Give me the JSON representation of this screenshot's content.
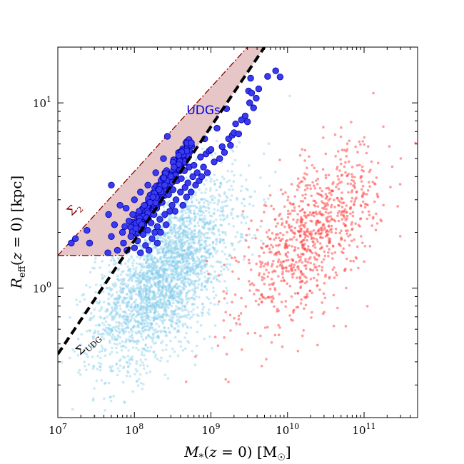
{
  "chart_data": {
    "type": "scatter",
    "title": "",
    "xlabel": "M_*(z=0) [M_☉]",
    "ylabel": "R_eff(z=0) [kpc]",
    "xscale": "log",
    "yscale": "log",
    "xlim": [
      10000000.0,
      500000000000.0
    ],
    "ylim": [
      0.2,
      20
    ],
    "x_ticks": [
      {
        "value": 10000000.0,
        "base": "10",
        "exp": "7"
      },
      {
        "value": 100000000.0,
        "base": "10",
        "exp": "8"
      },
      {
        "value": 1000000000.0,
        "base": "10",
        "exp": "9"
      },
      {
        "value": 10000000000.0,
        "base": "10",
        "exp": "10"
      },
      {
        "value": 100000000000.0,
        "base": "10",
        "exp": "11"
      }
    ],
    "y_ticks": [
      {
        "value": 1,
        "base": "10",
        "exp": "0"
      },
      {
        "value": 10,
        "base": "10",
        "exp": "1"
      }
    ],
    "grid": false,
    "legend": "none",
    "colors": {
      "blue_cloud": "#87ceeb",
      "red_cloud": "#ff4a4a",
      "udg": "#3a3aee",
      "udg_edge": "#0000aa",
      "region_fill": "#e6c6c6",
      "region_edge": "#8b0000",
      "udg_line": "#000000"
    },
    "lines": [
      {
        "label": "Σ_UDG",
        "style": "dashed",
        "points": [
          [
            10000000.0,
            0.44
          ],
          [
            5000000000.0,
            20
          ]
        ]
      },
      {
        "label": "Σ_2",
        "style": "dashdot",
        "points": [
          [
            10000000.0,
            1.5
          ],
          [
            3000000000.0,
            20
          ]
        ]
      },
      {
        "label": "",
        "style": "dashdot",
        "points": [
          [
            10000000.0,
            1.5
          ],
          [
            160000000.0,
            1.5
          ]
        ]
      }
    ],
    "annotations": [
      {
        "text": "UDGs",
        "x": 800000000.0,
        "y": 8.7
      }
    ],
    "series": [
      {
        "name": "",
        "role": "blue_cloud",
        "n": 2800,
        "center_log": [
          8.4,
          0.08
        ],
        "spread_log": [
          0.45,
          0.2
        ],
        "slope": 0.32
      },
      {
        "name": "",
        "role": "red_cloud",
        "n": 900,
        "center_log": [
          10.3,
          0.28
        ],
        "spread_log": [
          0.45,
          0.18
        ],
        "slope": 0.32
      },
      {
        "name": "UDGs",
        "role": "udg",
        "points": [
          [
            15000000.0,
            1.75
          ],
          [
            17000000.0,
            1.85
          ],
          [
            24000000.0,
            2.05
          ],
          [
            26000000.0,
            1.75
          ],
          [
            45000000.0,
            1.55
          ],
          [
            46000000.0,
            2.5
          ],
          [
            50000000.0,
            3.6
          ],
          [
            50000000.0,
            1.9
          ],
          [
            55000000.0,
            2.2
          ],
          [
            60000000.0,
            1.6
          ],
          [
            65000000.0,
            2.8
          ],
          [
            70000000.0,
            2.0
          ],
          [
            72000000.0,
            1.75
          ],
          [
            75000000.0,
            2.15
          ],
          [
            78000000.0,
            2.7
          ],
          [
            80000000.0,
            1.6
          ],
          [
            85000000.0,
            2.3
          ],
          [
            90000000.0,
            1.9
          ],
          [
            95000000.0,
            2.5
          ],
          [
            100000000.0,
            1.65
          ],
          [
            100000000.0,
            3.0
          ],
          [
            105000000.0,
            2.1
          ],
          [
            110000000.0,
            1.8
          ],
          [
            115000000.0,
            2.6
          ],
          [
            120000000.0,
            1.55
          ],
          [
            120000000.0,
            3.3
          ],
          [
            125000000.0,
            2.2
          ],
          [
            130000000.0,
            1.95
          ],
          [
            135000000.0,
            2.8
          ],
          [
            140000000.0,
            1.7
          ],
          [
            145000000.0,
            2.4
          ],
          [
            150000000.0,
            2.05
          ],
          [
            150000000.0,
            3.6
          ],
          [
            155000000.0,
            1.6
          ],
          [
            160000000.0,
            2.9
          ],
          [
            165000000.0,
            2.25
          ],
          [
            170000000.0,
            1.85
          ],
          [
            175000000.0,
            3.1
          ],
          [
            180000000.0,
            2.5
          ],
          [
            185000000.0,
            2.0
          ],
          [
            190000000.0,
            4.2
          ],
          [
            195000000.0,
            2.7
          ],
          [
            200000000.0,
            2.15
          ],
          [
            200000000.0,
            1.75
          ],
          [
            210000000.0,
            3.4
          ],
          [
            215000000.0,
            2.35
          ],
          [
            220000000.0,
            2.0
          ],
          [
            230000000.0,
            2.9
          ],
          [
            240000000.0,
            5.0
          ],
          [
            250000000.0,
            2.5
          ],
          [
            250000000.0,
            3.6
          ],
          [
            260000000.0,
            2.2
          ],
          [
            270000000.0,
            6.6
          ],
          [
            280000000.0,
            3.2
          ],
          [
            290000000.0,
            2.6
          ],
          [
            300000000.0,
            4.0
          ],
          [
            310000000.0,
            2.8
          ],
          [
            320000000.0,
            3.4
          ],
          [
            330000000.0,
            4.5
          ],
          [
            340000000.0,
            2.6
          ],
          [
            350000000.0,
            3.0
          ],
          [
            360000000.0,
            3.8
          ],
          [
            380000000.0,
            5.2
          ],
          [
            400000000.0,
            3.3
          ],
          [
            410000000.0,
            3.9
          ],
          [
            430000000.0,
            2.8
          ],
          [
            450000000.0,
            4.3
          ],
          [
            460000000.0,
            3.5
          ],
          [
            480000000.0,
            3.1
          ],
          [
            500000000.0,
            3.7
          ],
          [
            520000000.0,
            4.5
          ],
          [
            550000000.0,
            3.3
          ],
          [
            580000000.0,
            4.0
          ],
          [
            600000000.0,
            4.6
          ],
          [
            630000000.0,
            3.6
          ],
          [
            660000000.0,
            4.2
          ],
          [
            700000000.0,
            3.8
          ],
          [
            730000000.0,
            5.1
          ],
          [
            760000000.0,
            4.0
          ],
          [
            800000000.0,
            4.5
          ],
          [
            830000000.0,
            6.4
          ],
          [
            860000000.0,
            5.3
          ],
          [
            900000000.0,
            4.2
          ],
          [
            950000000.0,
            5.5
          ],
          [
            1000000000.0,
            5.6
          ],
          [
            1100000000.0,
            4.8
          ],
          [
            1200000000.0,
            7.3
          ],
          [
            1300000000.0,
            5.0
          ],
          [
            1400000000.0,
            5.8
          ],
          [
            1500000000.0,
            5.4
          ],
          [
            1600000000.0,
            9.3
          ],
          [
            1700000000.0,
            6.4
          ],
          [
            1800000000.0,
            5.9
          ],
          [
            1900000000.0,
            6.7
          ],
          [
            2000000000.0,
            6.9
          ],
          [
            2100000000.0,
            7.7
          ],
          [
            2300000000.0,
            6.8
          ],
          [
            2500000000.0,
            8.1
          ],
          [
            2800000000.0,
            8.5
          ],
          [
            3000000000.0,
            7.9
          ],
          [
            3100000000.0,
            11.6
          ],
          [
            3200000000.0,
            10.0
          ],
          [
            3300000000.0,
            13.6
          ],
          [
            3400000000.0,
            11.3
          ],
          [
            3600000000.0,
            9.4
          ],
          [
            3900000000.0,
            10.6
          ],
          [
            4200000000.0,
            11.9
          ],
          [
            5500000000.0,
            13.9
          ],
          [
            7000000000.0,
            14.9
          ],
          [
            8000000000.0,
            13.8
          ]
        ],
        "dense_band": {
          "n": 220,
          "x_range_log": [
            7.95,
            8.75
          ],
          "on_line": "Σ_UDG"
        }
      }
    ]
  }
}
